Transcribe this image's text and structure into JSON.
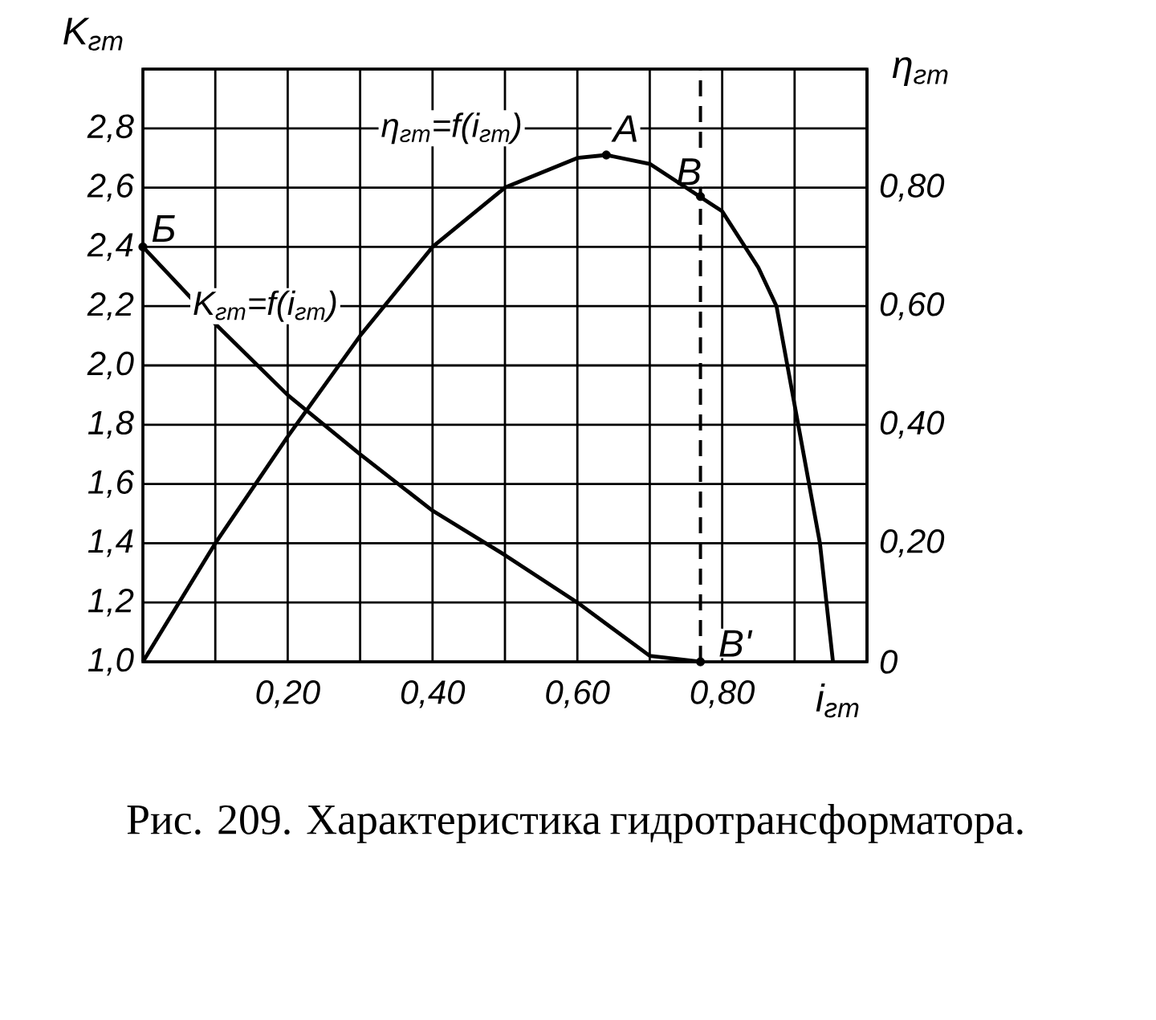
{
  "chart_data": {
    "type": "line",
    "xlabel": "i$_{гт}$",
    "ylabel": "K$_{гт}$",
    "y2label": "η$_{гт}$",
    "xlim": [
      0,
      1.0
    ],
    "xticks": [
      {
        "value": 0,
        "label": null
      },
      {
        "value": 0.1,
        "label": null
      },
      {
        "value": 0.2,
        "label": "0,20"
      },
      {
        "value": 0.3,
        "label": null
      },
      {
        "value": 0.4,
        "label": "0,40"
      },
      {
        "value": 0.5,
        "label": null
      },
      {
        "value": 0.6,
        "label": "0,60"
      },
      {
        "value": 0.7,
        "label": null
      },
      {
        "value": 0.8,
        "label": "0,80"
      },
      {
        "value": 0.9,
        "label": null
      },
      {
        "value": 1.0,
        "label": null
      }
    ],
    "ylim": [
      1.0,
      3.0
    ],
    "yticks": [
      {
        "value": 1.0,
        "label": "1,0"
      },
      {
        "value": 1.2,
        "label": "1,2"
      },
      {
        "value": 1.4,
        "label": "1,4"
      },
      {
        "value": 1.6,
        "label": "1,6"
      },
      {
        "value": 1.8,
        "label": "1,8"
      },
      {
        "value": 2.0,
        "label": "2,0"
      },
      {
        "value": 2.2,
        "label": "2,2"
      },
      {
        "value": 2.4,
        "label": "2,4"
      },
      {
        "value": 2.6,
        "label": "2,6"
      },
      {
        "value": 2.8,
        "label": "2,8"
      },
      {
        "value": 3.0,
        "label": null
      }
    ],
    "y2lim": [
      0,
      1.0
    ],
    "y2ticks": [
      0,
      {
        "value": 0.2,
        "label": "0,20"
      },
      {
        "value": 0.4,
        "label": "0,40"
      },
      {
        "value": 0.6,
        "label": "0,60"
      },
      {
        "value": 0.8,
        "label": "0,80"
      },
      {
        "value": 1.0,
        "label": null
      }
    ],
    "grid": true,
    "legend": false,
    "marker": "none",
    "line_style": "solid",
    "series": [
      {
        "name": "K$_{гт}$=f(i$_{гт}$)",
        "color": "#000000",
        "x": [
          0,
          0.1,
          0.2,
          0.3,
          0.4,
          0.5,
          0.6,
          0.7,
          0.77
        ],
        "values": [
          2.4,
          2.14,
          1.9,
          1.7,
          1.51,
          1.36,
          1.2,
          1.02,
          1.0
        ]
      },
      {
        "name": "η$_{гт}$=f(i$_{гт}$)",
        "color": "#000000",
        "axis": "y2",
        "x": [
          0,
          0.1,
          0.2,
          0.3,
          0.4,
          0.5,
          0.6,
          0.64,
          0.7,
          0.75,
          0.8,
          0.85,
          0.875,
          0.905,
          0.935,
          0.953
        ],
        "values": [
          0,
          0.2,
          0.38,
          0.55,
          0.7,
          0.8,
          0.85,
          0.855,
          0.84,
          0.8,
          0.76,
          0.665,
          0.6,
          0.4,
          0.2,
          0
        ]
      }
    ],
    "ref_lines": [
      {
        "axis": "x",
        "value": 0.77,
        "line_style": "dashed"
      }
    ],
    "annotations": [
      {
        "text": "А",
        "x": 0.64,
        "y": 2.71
      },
      {
        "text": "Б",
        "x": 0,
        "y": 2.4
      },
      {
        "text": "В",
        "x": 0.77,
        "y": 2.57
      },
      {
        "text": "В'",
        "x": 0.77,
        "y": 1.0
      },
      "Рис. 209. Характеристика гидротрансформатора."
    ]
  }
}
